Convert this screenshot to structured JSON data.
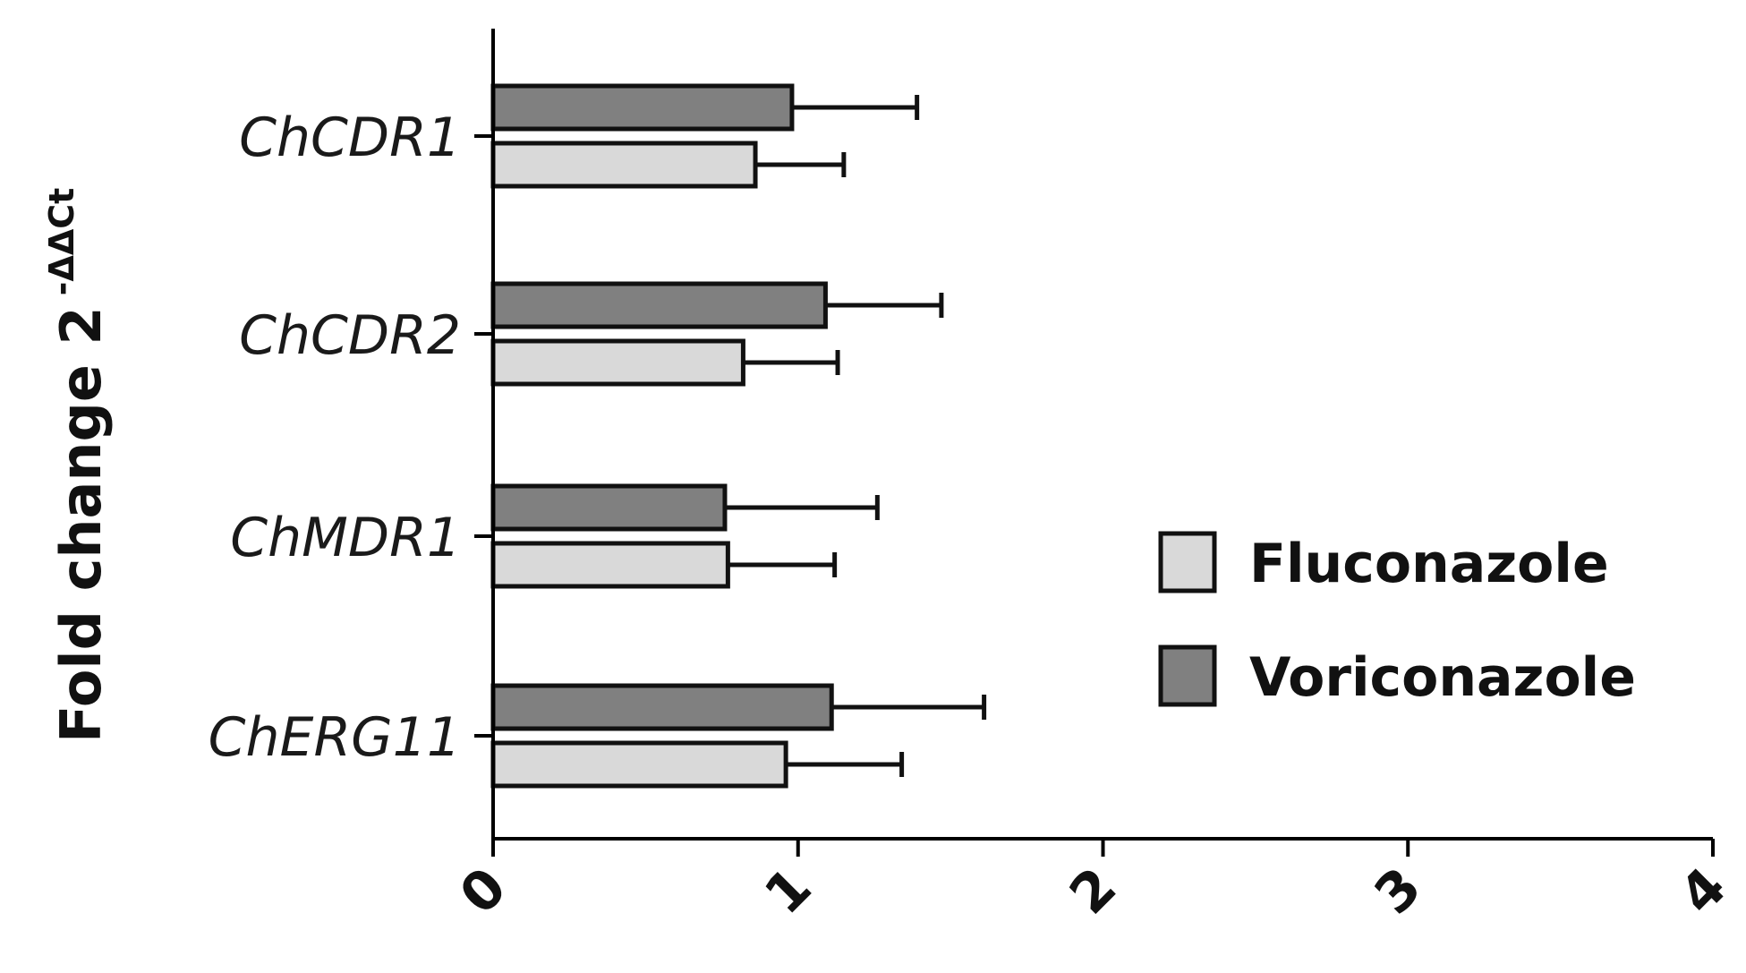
{
  "chart_data": {
    "type": "bar",
    "orientation": "horizontal",
    "categories": [
      "ChCDR1",
      "ChCDR2",
      "ChMDR1",
      "ChERG11"
    ],
    "series": [
      {
        "name": "Voriconazole",
        "color": "#808080",
        "values": [
          0.98,
          1.09,
          0.76,
          1.11
        ],
        "errors": [
          0.41,
          0.38,
          0.5,
          0.5
        ]
      },
      {
        "name": "Fluconazole",
        "color": "#d9d9d9",
        "values": [
          0.86,
          0.82,
          0.77,
          0.96
        ],
        "errors": [
          0.29,
          0.31,
          0.35,
          0.38
        ]
      }
    ],
    "xlim": [
      0,
      4
    ],
    "xticks": [
      "0",
      "1",
      "2",
      "3",
      "4"
    ],
    "ylabel": "Fold change 2",
    "ylabel_superscript": "-ΔΔCt",
    "legend": [
      {
        "label": "Fluconazole",
        "color": "#d9d9d9"
      },
      {
        "label": "Voriconazole",
        "color": "#808080"
      }
    ],
    "legend_position": "right",
    "grid": false
  }
}
